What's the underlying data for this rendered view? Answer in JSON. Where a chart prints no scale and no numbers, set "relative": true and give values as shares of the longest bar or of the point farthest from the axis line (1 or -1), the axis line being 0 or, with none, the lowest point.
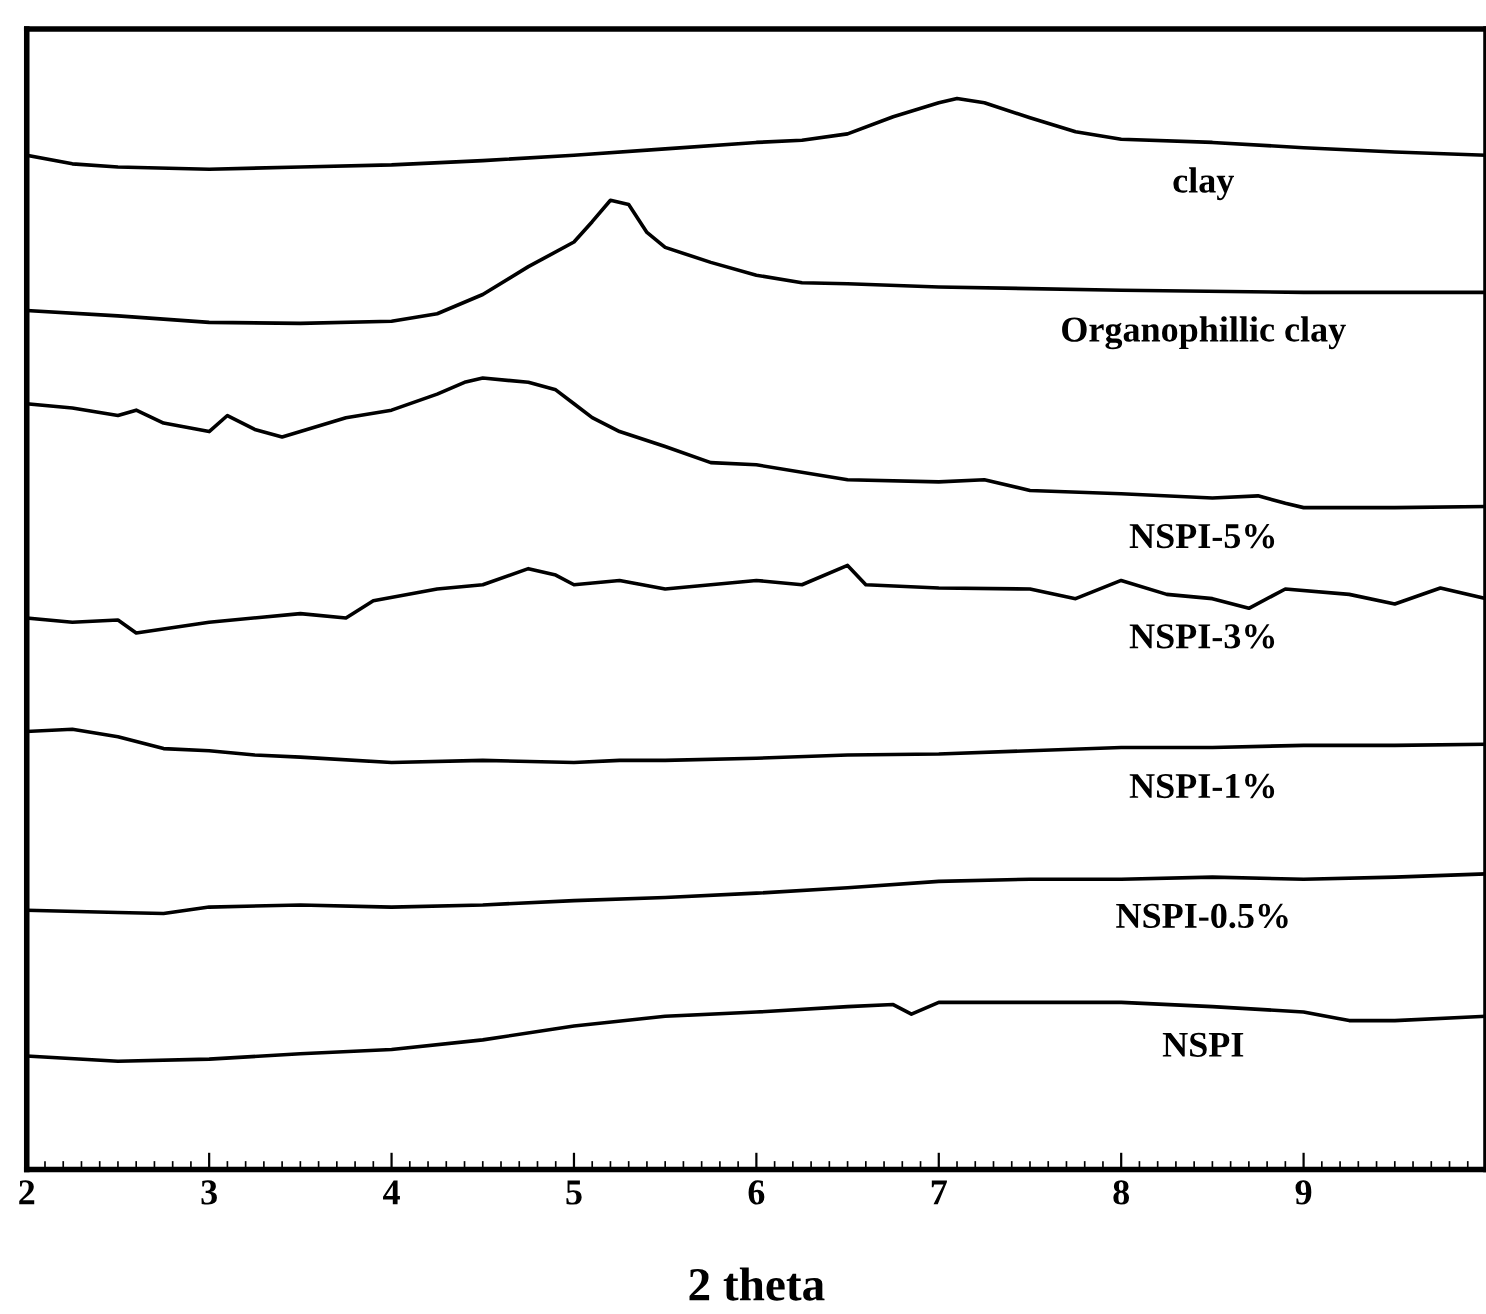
{
  "chart_data": {
    "type": "line",
    "relative": true,
    "xlabel": "2 theta",
    "xlim": [
      2,
      10
    ],
    "xticks": [
      2,
      3,
      4,
      5,
      6,
      7,
      8,
      9
    ],
    "grid": false,
    "legend": false,
    "marker": "none",
    "line_style": "solid",
    "series": [
      {
        "name": "clay",
        "color": "#000000",
        "x": [
          2,
          2.25,
          2.5,
          3,
          3.5,
          4,
          4.5,
          5,
          5.5,
          6,
          6.25,
          6.5,
          6.75,
          7,
          7.1,
          7.25,
          7.5,
          7.75,
          8,
          8.5,
          9,
          9.5,
          10
        ],
        "values": [
          0.947,
          0.939,
          0.936,
          0.934,
          0.936,
          0.938,
          0.942,
          0.947,
          0.953,
          0.959,
          0.961,
          0.967,
          0.983,
          0.996,
          1.0,
          0.996,
          0.982,
          0.969,
          0.962,
          0.959,
          0.954,
          0.95,
          0.947
        ]
      },
      {
        "name": "Organophillic clay",
        "color": "#000000",
        "x": [
          2,
          2.5,
          3,
          3.5,
          4,
          4.25,
          4.5,
          4.75,
          5,
          5.1,
          5.2,
          5.3,
          5.4,
          5.5,
          5.75,
          6,
          6.25,
          6.5,
          7,
          8,
          9,
          10
        ],
        "values": [
          0.802,
          0.797,
          0.791,
          0.79,
          0.792,
          0.799,
          0.817,
          0.843,
          0.866,
          0.885,
          0.905,
          0.901,
          0.875,
          0.861,
          0.847,
          0.835,
          0.828,
          0.827,
          0.824,
          0.821,
          0.819,
          0.819
        ]
      },
      {
        "name": "NSPI-5%",
        "color": "#000000",
        "x": [
          2,
          2.25,
          2.5,
          2.6,
          2.75,
          3,
          3.1,
          3.25,
          3.4,
          3.5,
          3.75,
          4,
          4.25,
          4.4,
          4.5,
          4.75,
          4.9,
          5,
          5.1,
          5.25,
          5.5,
          5.75,
          6,
          6.5,
          7,
          7.25,
          7.5,
          8,
          8.5,
          8.75,
          8.9,
          9,
          9.5,
          10
        ],
        "values": [
          0.715,
          0.711,
          0.704,
          0.709,
          0.697,
          0.689,
          0.704,
          0.691,
          0.684,
          0.689,
          0.702,
          0.709,
          0.724,
          0.735,
          0.739,
          0.735,
          0.728,
          0.715,
          0.702,
          0.689,
          0.675,
          0.66,
          0.658,
          0.644,
          0.642,
          0.644,
          0.634,
          0.631,
          0.627,
          0.629,
          0.622,
          0.618,
          0.618,
          0.619
        ]
      },
      {
        "name": "NSPI-3%",
        "color": "#000000",
        "x": [
          2,
          2.25,
          2.5,
          2.6,
          3,
          3.5,
          3.75,
          3.9,
          4.25,
          4.5,
          4.75,
          4.9,
          5,
          5.25,
          5.5,
          6,
          6.25,
          6.5,
          6.6,
          7,
          7.5,
          7.75,
          8,
          8.25,
          8.5,
          8.7,
          8.9,
          9.25,
          9.5,
          9.75,
          10
        ],
        "values": [
          0.515,
          0.511,
          0.513,
          0.501,
          0.511,
          0.519,
          0.515,
          0.531,
          0.542,
          0.546,
          0.561,
          0.555,
          0.546,
          0.55,
          0.542,
          0.55,
          0.546,
          0.564,
          0.546,
          0.543,
          0.542,
          0.533,
          0.55,
          0.537,
          0.533,
          0.524,
          0.542,
          0.537,
          0.528,
          0.543,
          0.533
        ]
      },
      {
        "name": "NSPI-1%",
        "color": "#000000",
        "x": [
          2,
          2.25,
          2.5,
          2.75,
          3,
          3.25,
          3.5,
          4,
          4.5,
          5,
          5.25,
          5.5,
          6,
          6.5,
          7,
          7.5,
          8,
          8.5,
          9,
          9.5,
          10
        ],
        "values": [
          0.409,
          0.411,
          0.404,
          0.393,
          0.391,
          0.387,
          0.385,
          0.38,
          0.382,
          0.38,
          0.382,
          0.382,
          0.384,
          0.387,
          0.388,
          0.391,
          0.394,
          0.394,
          0.396,
          0.396,
          0.397
        ]
      },
      {
        "name": "NSPI-0.5%",
        "color": "#000000",
        "x": [
          2,
          2.5,
          2.75,
          3,
          3.5,
          4,
          4.5,
          5,
          5.5,
          6,
          6.5,
          7,
          7.5,
          8,
          8.5,
          9,
          9.5,
          10
        ],
        "values": [
          0.242,
          0.24,
          0.239,
          0.245,
          0.247,
          0.245,
          0.247,
          0.251,
          0.254,
          0.258,
          0.263,
          0.269,
          0.271,
          0.271,
          0.273,
          0.271,
          0.273,
          0.276
        ]
      },
      {
        "name": "NSPI",
        "color": "#000000",
        "x": [
          2,
          2.5,
          3,
          3.5,
          4,
          4.5,
          5,
          5.5,
          6,
          6.5,
          6.75,
          6.85,
          7,
          7.5,
          8,
          8.5,
          9,
          9.25,
          9.5,
          10
        ],
        "values": [
          0.106,
          0.101,
          0.103,
          0.108,
          0.112,
          0.121,
          0.134,
          0.143,
          0.147,
          0.152,
          0.154,
          0.145,
          0.156,
          0.156,
          0.156,
          0.152,
          0.147,
          0.139,
          0.139,
          0.143
        ]
      }
    ]
  }
}
